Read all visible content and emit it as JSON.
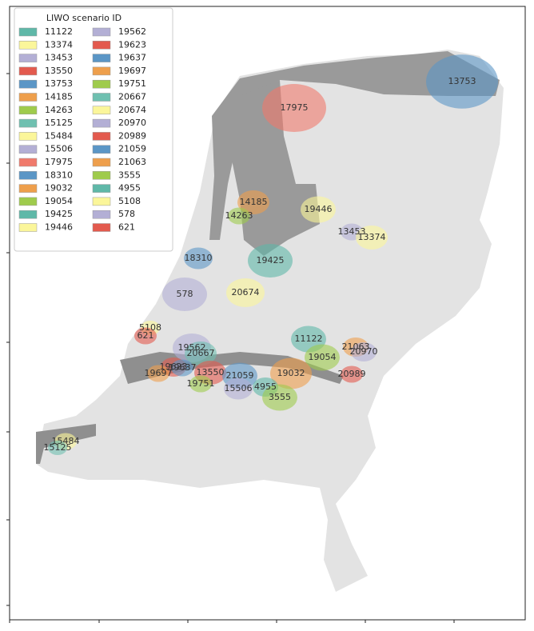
{
  "legend": {
    "title": "LIWO scenario ID",
    "entries": [
      {
        "name": "11122",
        "color": "#5fb8a8"
      },
      {
        "name": "13374",
        "color": "#fbf69a"
      },
      {
        "name": "13453",
        "color": "#b3afd5"
      },
      {
        "name": "13550",
        "color": "#e35a4e"
      },
      {
        "name": "13753",
        "color": "#5b96c6"
      },
      {
        "name": "14185",
        "color": "#ee9f4c"
      },
      {
        "name": "14263",
        "color": "#9fcb4c"
      },
      {
        "name": "15125",
        "color": "#6fc0b0"
      },
      {
        "name": "15484",
        "color": "#fbf69a"
      },
      {
        "name": "15506",
        "color": "#b3afd5"
      },
      {
        "name": "17975",
        "color": "#f07a6c"
      },
      {
        "name": "18310",
        "color": "#5b96c6"
      },
      {
        "name": "19032",
        "color": "#ee9f4c"
      },
      {
        "name": "19054",
        "color": "#9fcb4c"
      },
      {
        "name": "19425",
        "color": "#5fb8a8"
      },
      {
        "name": "19446",
        "color": "#fbf69a"
      },
      {
        "name": "19562",
        "color": "#b3afd5"
      },
      {
        "name": "19623",
        "color": "#e35a4e"
      },
      {
        "name": "19637",
        "color": "#5b96c6"
      },
      {
        "name": "19697",
        "color": "#ee9f4c"
      },
      {
        "name": "19751",
        "color": "#9fcb4c"
      },
      {
        "name": "20667",
        "color": "#6fc0b0"
      },
      {
        "name": "20674",
        "color": "#fbf69a"
      },
      {
        "name": "20970",
        "color": "#b3afd5"
      },
      {
        "name": "20989",
        "color": "#e35a4e"
      },
      {
        "name": "21059",
        "color": "#5b96c6"
      },
      {
        "name": "21063",
        "color": "#ee9f4c"
      },
      {
        "name": "3555",
        "color": "#9fcb4c"
      },
      {
        "name": "4955",
        "color": "#5fb8a8"
      },
      {
        "name": "5108",
        "color": "#fbf69a"
      },
      {
        "name": "578",
        "color": "#b3afd5"
      },
      {
        "name": "621",
        "color": "#e35a4e"
      }
    ]
  },
  "map_labels": [
    "13753",
    "17975",
    "14185",
    "14263",
    "19446",
    "13453",
    "13374",
    "18310",
    "19425",
    "578",
    "20674",
    "5108",
    "621",
    "19562",
    "20667",
    "11122",
    "21063",
    "20970",
    "19054",
    "19623",
    "19637",
    "19697",
    "13550",
    "21059",
    "19032",
    "20989",
    "19751",
    "15506",
    "4955",
    "3555",
    "15484",
    "15125"
  ]
}
